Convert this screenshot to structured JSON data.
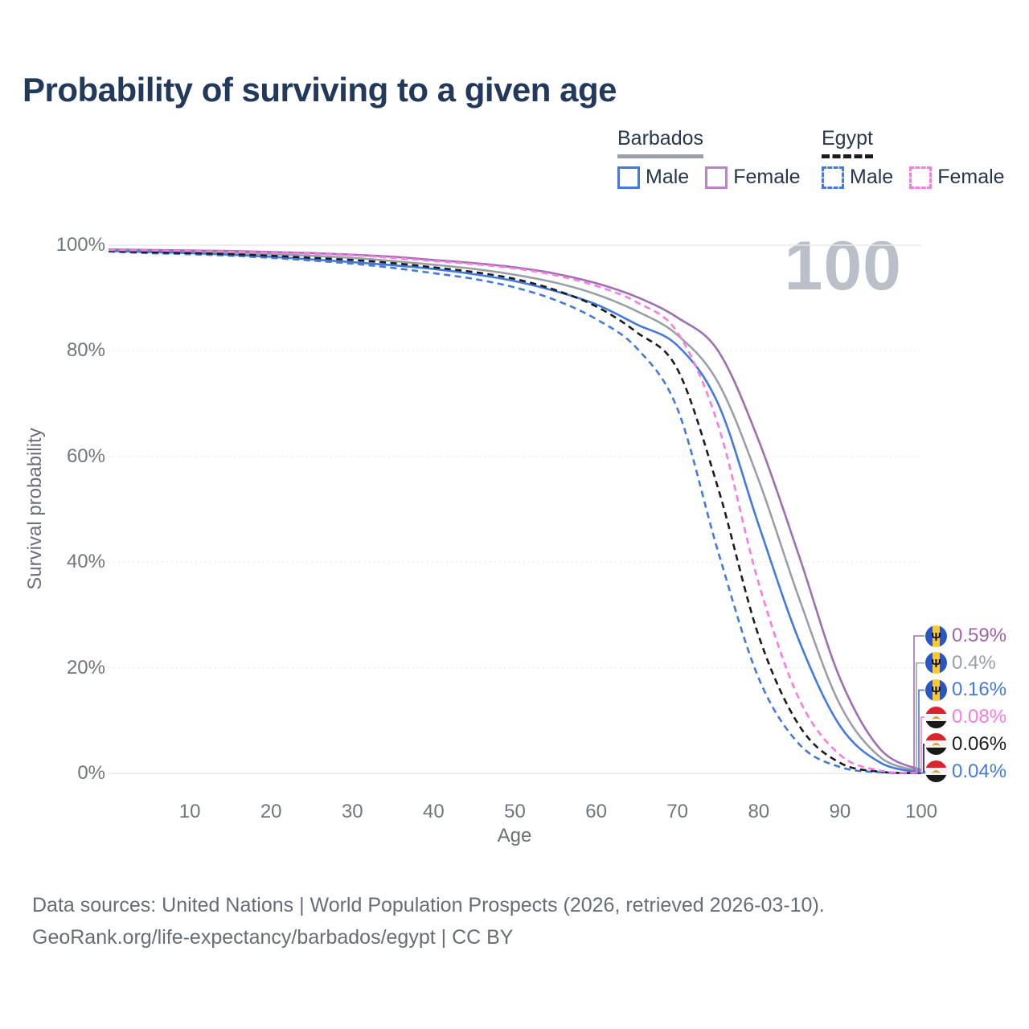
{
  "title": "Probability of surviving to a given age",
  "watermark": "100",
  "legend": {
    "groups": [
      {
        "name": "Barbados",
        "underline_style": "solid",
        "underline_color": "#9aa0a8",
        "items": [
          {
            "label": "Male",
            "color": "#4479dd",
            "dashed": false
          },
          {
            "label": "Female",
            "color": "#bb84c3",
            "dashed": false
          }
        ]
      },
      {
        "name": "Egypt",
        "underline_style": "dashed",
        "underline_color": "#1b1b1b",
        "items": [
          {
            "label": "Male",
            "color": "#4479dd",
            "dashed": true
          },
          {
            "label": "Female",
            "color": "#fa7be2",
            "dashed": true
          }
        ]
      }
    ]
  },
  "chart_data": {
    "type": "line",
    "title": "Probability of surviving to a given age",
    "xlabel": "Age",
    "ylabel": "Survival probability",
    "xlim": [
      0,
      100
    ],
    "ylim": [
      0,
      100
    ],
    "grid": "horizontal, dotted minor lines at 20/40/60/80, solid at 0 and 100",
    "legend_position": "top-right",
    "x_ticks": [
      10,
      20,
      30,
      40,
      50,
      60,
      70,
      80,
      90,
      100
    ],
    "y_tick_values": [
      0,
      20,
      40,
      60,
      80,
      100
    ],
    "y_tick_labels": [
      "0%",
      "20%",
      "40%",
      "60%",
      "80%",
      "100%"
    ],
    "ages": [
      0,
      5,
      10,
      15,
      20,
      25,
      30,
      35,
      40,
      45,
      50,
      55,
      60,
      65,
      70,
      75,
      80,
      85,
      90,
      95,
      100
    ],
    "series": [
      {
        "name": "Barbados Female",
        "country": "Barbados",
        "sex": "Female",
        "line_color": "#9e6fb2",
        "label_color": "#a561ae",
        "dashed": false,
        "flag": "barbados",
        "end_label": "0.59%",
        "end_value": 0.59,
        "values": [
          99.2,
          99.1,
          99.0,
          98.9,
          98.7,
          98.5,
          98.2,
          97.8,
          97.2,
          96.6,
          95.8,
          94.6,
          92.8,
          90.2,
          86.3,
          80.0,
          63.0,
          41.0,
          18.0,
          4.5,
          0.59
        ]
      },
      {
        "name": "Barbados Both sexes",
        "country": "Barbados",
        "sex": "Both sexes",
        "line_color": "#9ba0a8",
        "label_color": "#9aa0a6",
        "dashed": false,
        "flag": "barbados",
        "end_label": "0.4%",
        "end_value": 0.4,
        "values": [
          99.0,
          98.85,
          98.7,
          98.55,
          98.3,
          98.0,
          97.6,
          97.0,
          96.3,
          95.5,
          94.4,
          92.9,
          90.7,
          87.5,
          83.0,
          74.0,
          55.5,
          33.0,
          13.0,
          3.0,
          0.4
        ]
      },
      {
        "name": "Barbados Male",
        "country": "Barbados",
        "sex": "Male",
        "line_color": "#4479dd",
        "label_color": "#4479dd",
        "dashed": false,
        "flag": "barbados",
        "end_label": "0.16%",
        "end_value": 0.16,
        "values": [
          98.9,
          98.7,
          98.5,
          98.2,
          97.8,
          97.3,
          96.8,
          96.2,
          95.5,
          94.5,
          93.2,
          91.3,
          88.8,
          85.0,
          81.0,
          70.0,
          47.0,
          25.0,
          9.0,
          2.0,
          0.16
        ]
      },
      {
        "name": "Egypt Female",
        "country": "Egypt",
        "sex": "Female",
        "line_color": "#fa7be2",
        "label_color": "#fa7be2",
        "dashed": true,
        "flag": "egypt",
        "end_label": "0.08%",
        "end_value": 0.08,
        "values": [
          99.1,
          99.0,
          98.9,
          98.8,
          98.6,
          98.4,
          98.1,
          97.6,
          97.0,
          96.4,
          95.6,
          94.3,
          92.3,
          89.2,
          83.5,
          66.0,
          36.0,
          14.0,
          3.5,
          0.5,
          0.08
        ]
      },
      {
        "name": "Egypt Both sexes",
        "country": "Egypt",
        "sex": "Both sexes",
        "line_color": "#1c1c1c",
        "label_color": "#1c1c1c",
        "dashed": true,
        "flag": "egypt",
        "end_label": "0.06%",
        "end_value": 0.06,
        "values": [
          98.9,
          98.65,
          98.5,
          98.3,
          98.0,
          97.6,
          97.2,
          96.6,
          95.8,
          94.9,
          93.6,
          91.5,
          88.4,
          83.5,
          76.5,
          54.0,
          26.0,
          9.0,
          2.0,
          0.3,
          0.06
        ]
      },
      {
        "name": "Egypt Male",
        "country": "Egypt",
        "sex": "Male",
        "line_color": "#4479dd",
        "label_color": "#4479dd",
        "dashed": true,
        "flag": "egypt",
        "end_label": "0.04%",
        "end_value": 0.04,
        "values": [
          98.8,
          98.5,
          98.3,
          98.0,
          97.6,
          97.1,
          96.5,
          95.7,
          94.7,
          93.6,
          92.0,
          89.6,
          86.0,
          80.5,
          69.0,
          42.0,
          18.0,
          5.5,
          1.2,
          0.2,
          0.04
        ]
      }
    ]
  },
  "footer": {
    "line1": "Data sources: United Nations | World Population Prospects (2026, retrieved 2026-03-10).",
    "line2": "GeoRank.org/life-expectancy/barbados/egypt | CC BY"
  }
}
